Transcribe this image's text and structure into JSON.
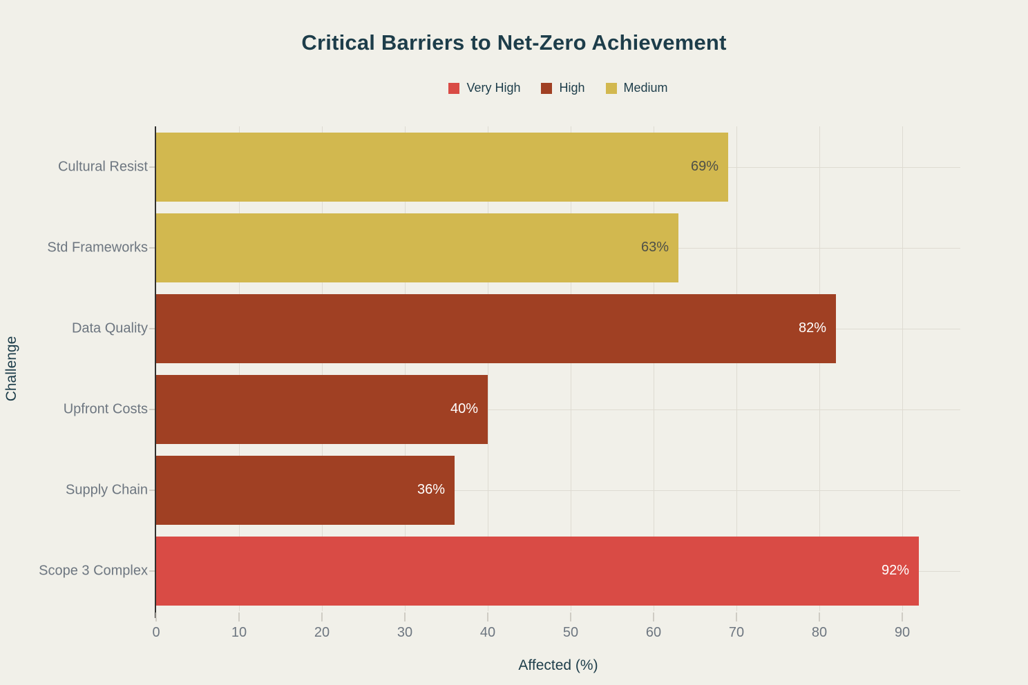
{
  "page": {
    "background": "#f1f0e9"
  },
  "chart_data": {
    "type": "bar",
    "orientation": "horizontal",
    "title": "Critical Barriers to Net-Zero Achievement",
    "xlabel": "Affected (%)",
    "ylabel": "Challenge",
    "categories": [
      "Cultural Resist",
      "Std Frameworks",
      "Data Quality",
      "Upfront Costs",
      "Supply Chain",
      "Scope 3 Complex"
    ],
    "values": [
      69,
      63,
      82,
      40,
      36,
      92
    ],
    "value_labels": [
      "69%",
      "63%",
      "82%",
      "40%",
      "36%",
      "92%"
    ],
    "severities": [
      "Medium",
      "Medium",
      "High",
      "High",
      "High",
      "Very High"
    ],
    "xlim": [
      0,
      97
    ],
    "xticks": [
      0,
      10,
      20,
      30,
      40,
      50,
      60,
      70,
      80,
      90
    ],
    "grid": true,
    "legend": {
      "position": "top-center",
      "entries": [
        {
          "label": "Very High",
          "color": "#d94b45"
        },
        {
          "label": "High",
          "color": "#a04023"
        },
        {
          "label": "Medium",
          "color": "#d2b84f"
        }
      ]
    },
    "severity_colors": {
      "Very High": "#d94b45",
      "High": "#a04023",
      "Medium": "#d2b84f"
    },
    "value_label_colors": {
      "Very High": "#ffffff",
      "High": "#ffffff",
      "Medium": "#4d4f48"
    }
  },
  "style_colors": {
    "title": "#1d3d4a",
    "axis_title": "#1d3d4a",
    "tick_text": "#6d7680",
    "gridline": "#dedbd2",
    "axis_line": "#30302e",
    "tick_mark": "#cfccc4"
  }
}
